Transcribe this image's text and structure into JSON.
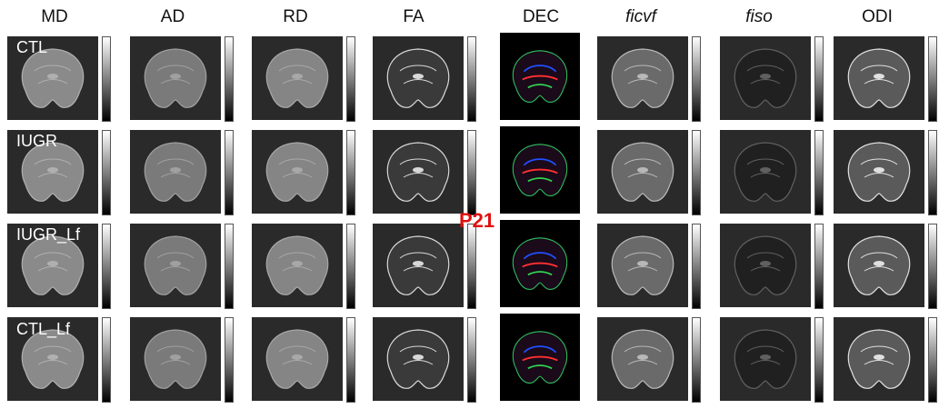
{
  "columns": [
    "MD",
    "AD",
    "RD",
    "FA",
    "DEC",
    "ficvf",
    "fiso",
    "ODI"
  ],
  "rows": [
    "CTL",
    "IUGR",
    "IUGR_Lf",
    "CTL_Lf"
  ],
  "age_label": "P21",
  "colors": {
    "age_label": "#e01010",
    "panel_bg": "#1a1a1a"
  }
}
